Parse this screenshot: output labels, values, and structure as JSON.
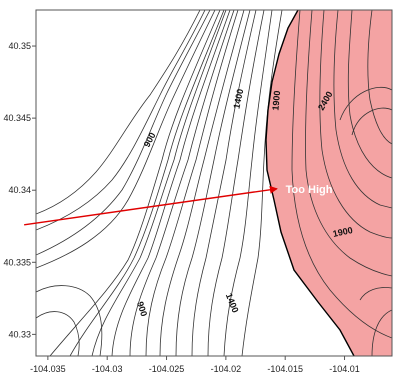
{
  "chart_data": {
    "type": "contour",
    "xlim": [
      -104.036,
      -104.006
    ],
    "ylim": [
      40.3285,
      40.3525
    ],
    "x_ticks": [
      -104.035,
      -104.03,
      -104.025,
      -104.02,
      -104.015,
      -104.01
    ],
    "x_tick_labels": [
      "-104.035",
      "-104.03",
      "-104.025",
      "-104.02",
      "-104.015",
      "-104.01"
    ],
    "y_ticks": [
      40.33,
      40.335,
      40.34,
      40.345,
      40.35
    ],
    "y_tick_labels": [
      "40.33",
      "40.335",
      "40.34",
      "40.345",
      "40.35"
    ],
    "contour_labels": [
      {
        "text": "900",
        "x": -104.0262,
        "y": 40.3434,
        "rotation": -62
      },
      {
        "text": "1400",
        "x": -104.0187,
        "y": 40.3463,
        "rotation": -78
      },
      {
        "text": "1900",
        "x": -104.0155,
        "y": 40.3462,
        "rotation": -85
      },
      {
        "text": "2400",
        "x": -104.0114,
        "y": 40.3461,
        "rotation": -60
      },
      {
        "text": "1900",
        "x": -104.0101,
        "y": 40.3369,
        "rotation": -12
      },
      {
        "text": "900",
        "x": -104.0273,
        "y": 40.3317,
        "rotation": 72
      },
      {
        "text": "1400",
        "x": -104.0197,
        "y": 40.3321,
        "rotation": 68
      }
    ],
    "highlight_region": {
      "label": "Too High",
      "color": "#f4a3a3",
      "threshold_note": ""
    },
    "annotation": {
      "text": "Too High",
      "x": -104.0153,
      "y": 40.3401,
      "arrow_from": [
        -104.037,
        40.3376
      ],
      "arrow_to": [
        -104.0157,
        40.3401
      ],
      "color": "#e00000"
    }
  }
}
